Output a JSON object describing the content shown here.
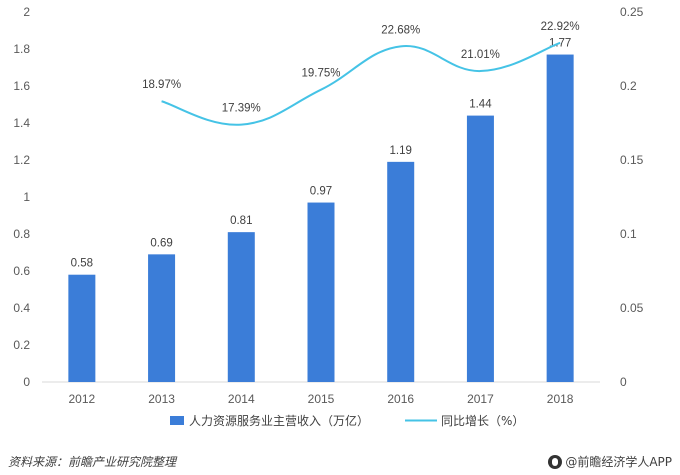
{
  "chart_data": {
    "type": "bar",
    "categories": [
      "2012",
      "2013",
      "2014",
      "2015",
      "2016",
      "2017",
      "2018"
    ],
    "series": [
      {
        "name": "人力资源服务业主营收入（万亿）",
        "type": "bar",
        "axis": "left",
        "color": "#3b7dd8",
        "values": [
          0.58,
          0.69,
          0.81,
          0.97,
          1.19,
          1.44,
          1.77
        ],
        "labels": [
          "0.58",
          "0.69",
          "0.81",
          "0.97",
          "1.19",
          "1.44",
          "1.77"
        ]
      },
      {
        "name": "同比增长（%）",
        "type": "line",
        "axis": "right",
        "color": "#45c3e6",
        "x": [
          "2013",
          "2014",
          "2015",
          "2016",
          "2017",
          "2018"
        ],
        "values": [
          0.1897,
          0.1739,
          0.1975,
          0.2268,
          0.2101,
          0.2292
        ],
        "labels": [
          "18.97%",
          "17.39%",
          "19.75%",
          "22.68%",
          "21.01%",
          "22.92%"
        ]
      }
    ],
    "y_left": {
      "ylim": [
        0,
        2
      ],
      "ticks": [
        "0",
        "0.2",
        "0.4",
        "0.6",
        "0.8",
        "1",
        "1.2",
        "1.4",
        "1.6",
        "1.8",
        "2"
      ]
    },
    "y_right": {
      "ylim": [
        0,
        0.25
      ],
      "ticks": [
        "0",
        "0.05",
        "0.1",
        "0.15",
        "0.2",
        "0.25"
      ]
    },
    "grid": false,
    "legend": "bottom"
  },
  "footer": {
    "source": "资料来源：前瞻产业研究院整理",
    "brand": "@前瞻经济学人APP"
  }
}
